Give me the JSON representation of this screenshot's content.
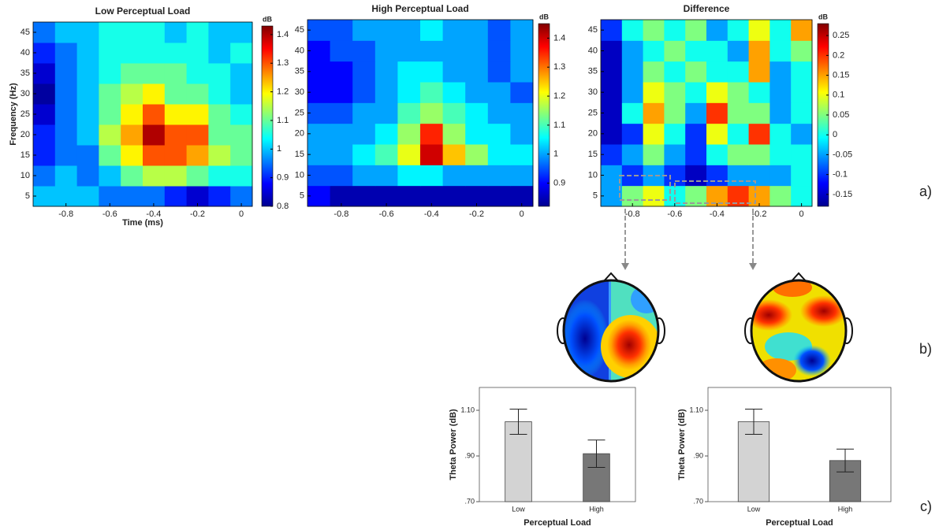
{
  "panel_labels": [
    "a)",
    "b)",
    "c)"
  ],
  "chart_data": [
    {
      "type": "heatmap",
      "title": "Low Perceptual Load",
      "xlabel": "Time (ms)",
      "ylabel": "Frequency (Hz)",
      "colormap": "jet",
      "colorbar_label": "dB",
      "clim": [
        0.8,
        1.43
      ],
      "cticks": [
        0.8,
        0.9,
        1,
        1.1,
        1.2,
        1.3,
        1.4
      ],
      "xlim": [
        -0.95,
        0.05
      ],
      "xticks": [
        -0.8,
        -0.6,
        -0.4,
        -0.2,
        0
      ],
      "ylim": [
        2.5,
        47.5
      ],
      "yticks": [
        5,
        10,
        15,
        20,
        25,
        30,
        35,
        40,
        45
      ],
      "x": [
        -0.9,
        -0.8,
        -0.7,
        -0.6,
        -0.5,
        -0.4,
        -0.3,
        -0.2,
        -0.1,
        0
      ],
      "y": [
        5,
        10,
        15,
        20,
        25,
        30,
        35,
        40,
        45
      ],
      "z": [
        [
          1.0,
          1.0,
          1.0,
          0.95,
          0.95,
          0.95,
          0.9,
          0.85,
          0.9,
          0.95
        ],
        [
          0.95,
          1.0,
          0.95,
          1.0,
          1.1,
          1.15,
          1.15,
          1.1,
          1.05,
          1.05
        ],
        [
          0.9,
          0.95,
          0.95,
          1.1,
          1.2,
          1.3,
          1.3,
          1.25,
          1.15,
          1.1
        ],
        [
          0.9,
          0.95,
          1.0,
          1.15,
          1.25,
          1.4,
          1.3,
          1.3,
          1.1,
          1.1
        ],
        [
          0.85,
          0.95,
          1.0,
          1.1,
          1.2,
          1.3,
          1.2,
          1.2,
          1.1,
          1.05
        ],
        [
          0.82,
          0.95,
          1.0,
          1.1,
          1.15,
          1.2,
          1.1,
          1.1,
          1.05,
          1.0
        ],
        [
          0.85,
          0.95,
          1.0,
          1.05,
          1.1,
          1.1,
          1.1,
          1.05,
          1.05,
          1.0
        ],
        [
          0.9,
          0.95,
          1.0,
          1.05,
          1.05,
          1.05,
          1.05,
          1.05,
          1.0,
          1.05
        ],
        [
          0.95,
          1.0,
          1.0,
          1.05,
          1.05,
          1.05,
          1.0,
          1.05,
          1.0,
          1.0
        ]
      ]
    },
    {
      "type": "heatmap",
      "title": "High Perceptual Load",
      "colormap": "jet",
      "colorbar_label": "dB",
      "clim": [
        0.82,
        1.45
      ],
      "cticks": [
        0.9,
        1,
        1.1,
        1.2,
        1.3,
        1.4
      ],
      "xlim": [
        -0.95,
        0.05
      ],
      "xticks": [
        -0.8,
        -0.6,
        -0.4,
        -0.2,
        0
      ],
      "ylim": [
        2.5,
        47.5
      ],
      "yticks": [
        5,
        10,
        15,
        20,
        25,
        30,
        35,
        40,
        45
      ],
      "x": [
        -0.9,
        -0.8,
        -0.7,
        -0.6,
        -0.5,
        -0.4,
        -0.3,
        -0.2,
        -0.1,
        0
      ],
      "y": [
        5,
        10,
        15,
        20,
        25,
        30,
        35,
        40,
        45
      ],
      "z": [
        [
          0.9,
          0.85,
          0.85,
          0.85,
          0.85,
          0.85,
          0.85,
          0.85,
          0.85,
          0.85
        ],
        [
          0.95,
          0.95,
          1.0,
          1.0,
          1.05,
          1.05,
          1.0,
          1.0,
          1.0,
          1.0
        ],
        [
          1.0,
          1.0,
          1.05,
          1.1,
          1.2,
          1.4,
          1.25,
          1.15,
          1.05,
          1.05
        ],
        [
          1.0,
          1.0,
          1.0,
          1.05,
          1.15,
          1.35,
          1.15,
          1.05,
          1.05,
          1.0
        ],
        [
          0.95,
          0.95,
          1.0,
          1.0,
          1.1,
          1.15,
          1.1,
          1.05,
          1.0,
          1.0
        ],
        [
          0.9,
          0.9,
          0.95,
          1.0,
          1.05,
          1.1,
          1.05,
          1.0,
          1.0,
          0.95
        ],
        [
          0.9,
          0.9,
          0.95,
          1.0,
          1.05,
          1.05,
          1.0,
          1.0,
          0.95,
          1.0
        ],
        [
          0.9,
          0.95,
          0.95,
          1.0,
          1.0,
          1.0,
          1.0,
          1.0,
          0.95,
          1.0
        ],
        [
          0.95,
          0.95,
          1.0,
          1.0,
          1.0,
          1.05,
          1.0,
          1.0,
          0.95,
          1.0
        ]
      ]
    },
    {
      "type": "heatmap",
      "title": "Difference",
      "colormap": "jet",
      "colorbar_label": "dB",
      "clim": [
        -0.18,
        0.28
      ],
      "cticks": [
        -0.15,
        -0.1,
        -0.05,
        0,
        0.05,
        0.1,
        0.15,
        0.2,
        0.25
      ],
      "xlim": [
        -0.95,
        0.05
      ],
      "xticks": [
        -0.8,
        -0.6,
        -0.4,
        -0.2,
        0
      ],
      "ylim": [
        2.5,
        47.5
      ],
      "yticks": [
        5,
        10,
        15,
        20,
        25,
        30,
        35,
        40,
        45
      ],
      "x": [
        -0.9,
        -0.8,
        -0.7,
        -0.6,
        -0.5,
        -0.4,
        -0.3,
        -0.2,
        -0.1,
        0
      ],
      "y": [
        5,
        10,
        15,
        20,
        25,
        30,
        35,
        40,
        45
      ],
      "z": [
        [
          -0.05,
          0.05,
          0.1,
          0,
          0.05,
          0.15,
          0.2,
          0.15,
          0.05,
          0
        ],
        [
          -0.05,
          -0.1,
          -0.05,
          -0.1,
          -0.15,
          -0.1,
          -0.05,
          -0.05,
          -0.05,
          0
        ],
        [
          -0.1,
          -0.05,
          0.05,
          -0.05,
          -0.1,
          0,
          0.05,
          0.05,
          0,
          0
        ],
        [
          -0.15,
          -0.1,
          0.1,
          0,
          -0.1,
          0.1,
          0,
          0.2,
          0,
          -0.05
        ],
        [
          -0.15,
          0,
          0.15,
          0.05,
          -0.05,
          0.2,
          0.05,
          0.05,
          -0.05,
          0
        ],
        [
          -0.15,
          -0.05,
          0.1,
          0.05,
          0,
          0.1,
          0.05,
          0,
          -0.05,
          0
        ],
        [
          -0.15,
          -0.05,
          0.05,
          0,
          0.05,
          0,
          0,
          0.15,
          -0.05,
          0
        ],
        [
          -0.15,
          -0.05,
          0,
          0.05,
          0,
          0,
          -0.05,
          0.15,
          0,
          0.05
        ],
        [
          -0.1,
          0,
          0.05,
          0,
          0.05,
          -0.05,
          0,
          0.1,
          0,
          0.15
        ]
      ]
    },
    {
      "type": "bar",
      "xlabel": "Perceptual Load",
      "ylabel": "Theta Power (dB)",
      "categories": [
        "Low",
        "High"
      ],
      "values": [
        1.05,
        0.91
      ],
      "errors": [
        0.055,
        0.06
      ],
      "colors": [
        "#d3d3d3",
        "#777777"
      ],
      "ylim": [
        0.7,
        1.2
      ],
      "yticks": [
        {
          "value": 0.7,
          "label": ".70"
        },
        {
          "value": 0.9,
          "label": ".90"
        },
        {
          "value": 1.1,
          "label": "1.10"
        }
      ]
    },
    {
      "type": "bar",
      "xlabel": "Perceptual Load",
      "ylabel": "Theta Power (dB)",
      "categories": [
        "Low",
        "High"
      ],
      "values": [
        1.05,
        0.88
      ],
      "errors": [
        0.055,
        0.05
      ],
      "colors": [
        "#d3d3d3",
        "#777777"
      ],
      "ylim": [
        0.7,
        1.2
      ],
      "yticks": [
        {
          "value": 0.7,
          "label": ".70"
        },
        {
          "value": 0.9,
          "label": ".90"
        },
        {
          "value": 1.1,
          "label": "1.10"
        }
      ]
    }
  ]
}
